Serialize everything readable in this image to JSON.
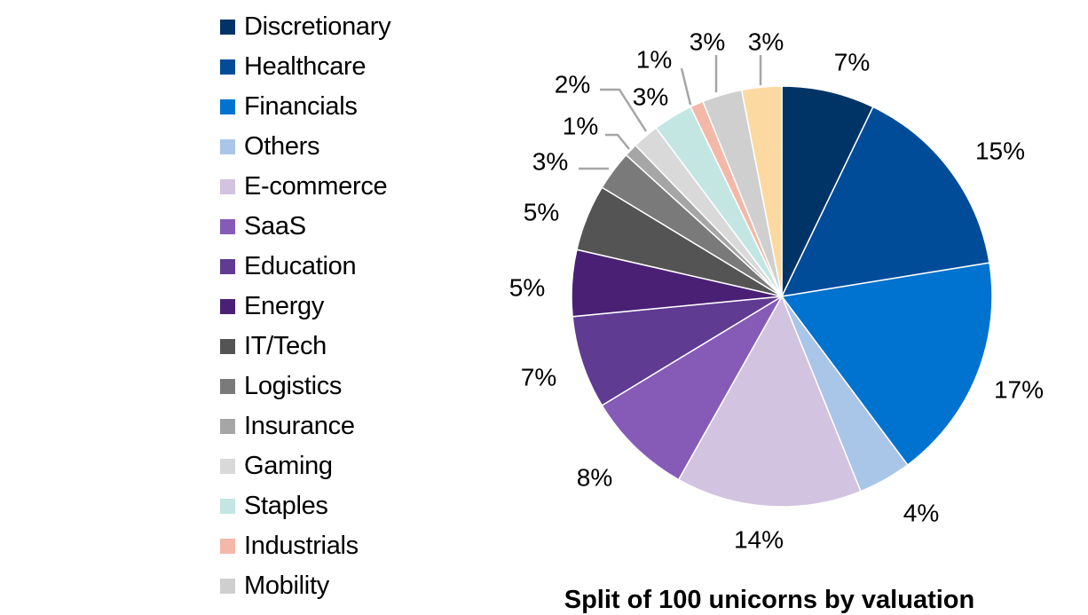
{
  "chart_data": {
    "type": "pie",
    "title": "Split of 100 unicorns by valuation",
    "start_angle": "12 o'clock",
    "direction": "clockwise",
    "legend_position": "left",
    "slices": [
      {
        "name": "Discretionary",
        "value": 7,
        "label": "7%",
        "color": "#003466"
      },
      {
        "name": "Healthcare",
        "value": 15,
        "label": "15%",
        "color": "#004c99"
      },
      {
        "name": "Financials",
        "value": 17,
        "label": "17%",
        "color": "#0072cf"
      },
      {
        "name": "Others",
        "value": 4,
        "label": "4%",
        "color": "#a9c6e8"
      },
      {
        "name": "E-commerce",
        "value": 14,
        "label": "14%",
        "color": "#d2c3e0"
      },
      {
        "name": "SaaS",
        "value": 8,
        "label": "8%",
        "color": "#865bb8"
      },
      {
        "name": "Education",
        "value": 7,
        "label": "7%",
        "color": "#5f3b92"
      },
      {
        "name": "Energy",
        "value": 5,
        "label": "5%",
        "color": "#4a2075"
      },
      {
        "name": "IT/Tech",
        "value": 5,
        "label": "5%",
        "color": "#545454"
      },
      {
        "name": "Logistics",
        "value": 3,
        "label": "3%",
        "color": "#7a7a7a"
      },
      {
        "name": "Insurance",
        "value": 1,
        "label": "1%",
        "color": "#a6a6a6"
      },
      {
        "name": "Gaming",
        "value": 2,
        "label": "2%",
        "color": "#d9d9d9"
      },
      {
        "name": "Staples",
        "value": 3,
        "label": "3%",
        "color": "#c3e6e3"
      },
      {
        "name": "Industrials",
        "value": 1,
        "label": "1%",
        "color": "#f4b8a8"
      },
      {
        "name": "Mobility",
        "value": 3,
        "label": "3%",
        "color": "#cfcfcf"
      },
      {
        "name": "",
        "value": 3,
        "label": "3%",
        "color": "#fcd9a0"
      }
    ]
  }
}
